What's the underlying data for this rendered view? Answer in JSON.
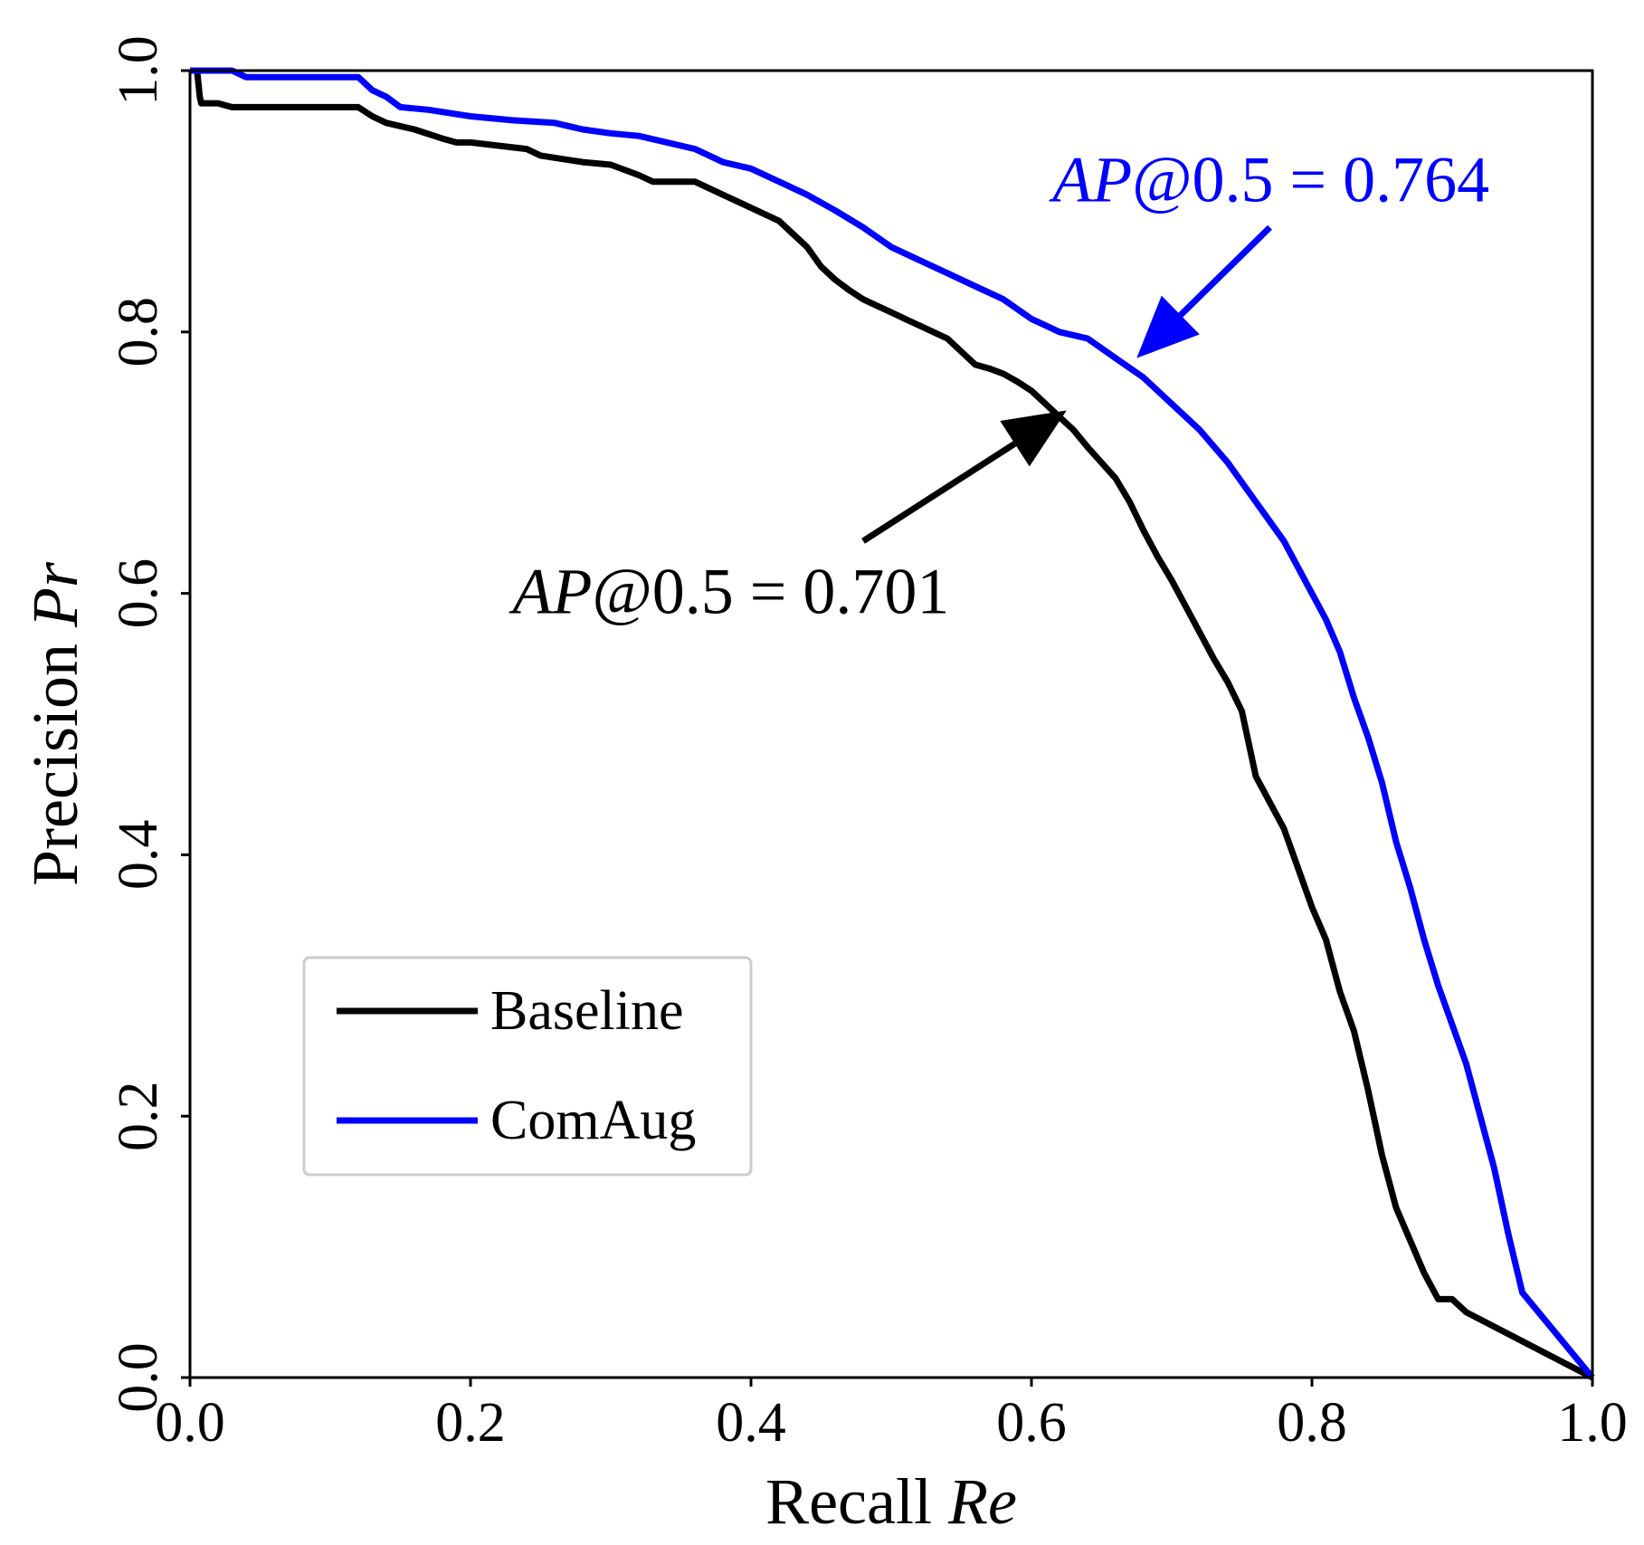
{
  "chart_data": {
    "type": "line",
    "title": "",
    "xlabel": {
      "text": "Recall ",
      "var": "Re"
    },
    "ylabel": {
      "text": "Precision ",
      "var": "Pr"
    },
    "xlim": [
      0.0,
      1.0
    ],
    "ylim": [
      0.0,
      1.0
    ],
    "xticks": [
      "0.0",
      "0.2",
      "0.4",
      "0.6",
      "0.8",
      "1.0"
    ],
    "yticks": [
      "0.0",
      "0.2",
      "0.4",
      "0.6",
      "0.8",
      "1.0"
    ],
    "grid": false,
    "legend": {
      "placement": "lower-left"
    },
    "series": [
      {
        "name": "Baseline",
        "color": "#000000",
        "x": [
          0.005,
          0.006,
          0.007,
          0.008,
          0.02,
          0.03,
          0.06,
          0.12,
          0.13,
          0.14,
          0.16,
          0.18,
          0.19,
          0.2,
          0.24,
          0.25,
          0.28,
          0.3,
          0.32,
          0.33,
          0.36,
          0.38,
          0.4,
          0.42,
          0.43,
          0.44,
          0.45,
          0.46,
          0.47,
          0.48,
          0.49,
          0.5,
          0.51,
          0.52,
          0.53,
          0.54,
          0.55,
          0.56,
          0.57,
          0.58,
          0.59,
          0.6,
          0.61,
          0.62,
          0.63,
          0.64,
          0.65,
          0.66,
          0.67,
          0.68,
          0.69,
          0.7,
          0.71,
          0.72,
          0.73,
          0.74,
          0.75,
          0.76,
          0.77,
          0.78,
          0.79,
          0.8,
          0.81,
          0.82,
          0.83,
          0.84,
          0.85,
          0.86,
          0.87,
          0.88,
          0.89,
          0.9,
          0.91,
          1.0
        ],
        "y": [
          1.0,
          0.99,
          0.98,
          0.975,
          0.975,
          0.972,
          0.972,
          0.972,
          0.965,
          0.96,
          0.955,
          0.948,
          0.945,
          0.945,
          0.94,
          0.935,
          0.93,
          0.928,
          0.92,
          0.915,
          0.915,
          0.905,
          0.895,
          0.885,
          0.875,
          0.865,
          0.85,
          0.84,
          0.832,
          0.825,
          0.82,
          0.815,
          0.81,
          0.805,
          0.8,
          0.795,
          0.785,
          0.775,
          0.772,
          0.768,
          0.762,
          0.755,
          0.745,
          0.735,
          0.725,
          0.712,
          0.7,
          0.688,
          0.67,
          0.648,
          0.628,
          0.61,
          0.59,
          0.57,
          0.55,
          0.532,
          0.51,
          0.46,
          0.44,
          0.42,
          0.39,
          0.36,
          0.335,
          0.295,
          0.265,
          0.22,
          0.17,
          0.13,
          0.105,
          0.08,
          0.06,
          0.06,
          0.05,
          0.0
        ]
      },
      {
        "name": "ComAug",
        "color": "#0000ff",
        "x": [
          0.0,
          0.03,
          0.04,
          0.12,
          0.13,
          0.14,
          0.15,
          0.17,
          0.2,
          0.23,
          0.26,
          0.28,
          0.3,
          0.32,
          0.34,
          0.36,
          0.38,
          0.4,
          0.42,
          0.44,
          0.46,
          0.48,
          0.5,
          0.52,
          0.54,
          0.56,
          0.58,
          0.6,
          0.62,
          0.64,
          0.66,
          0.68,
          0.7,
          0.72,
          0.74,
          0.76,
          0.78,
          0.8,
          0.81,
          0.82,
          0.83,
          0.84,
          0.85,
          0.86,
          0.87,
          0.88,
          0.89,
          0.9,
          0.91,
          0.92,
          0.93,
          0.94,
          0.95,
          1.0
        ],
        "y": [
          1.0,
          1.0,
          0.995,
          0.995,
          0.985,
          0.98,
          0.972,
          0.97,
          0.965,
          0.962,
          0.96,
          0.955,
          0.952,
          0.95,
          0.945,
          0.94,
          0.93,
          0.925,
          0.915,
          0.905,
          0.893,
          0.88,
          0.865,
          0.855,
          0.845,
          0.835,
          0.825,
          0.81,
          0.8,
          0.795,
          0.78,
          0.765,
          0.745,
          0.725,
          0.7,
          0.67,
          0.64,
          0.6,
          0.58,
          0.555,
          0.52,
          0.49,
          0.455,
          0.41,
          0.375,
          0.335,
          0.3,
          0.27,
          0.24,
          0.2,
          0.16,
          0.11,
          0.065,
          0.0
        ]
      }
    ],
    "annotations": [
      {
        "name": "comaug",
        "var": "AP",
        "text": "@0.5 = 0.764",
        "color": "#0000ff",
        "text_at": [
          0.615,
          0.9
        ],
        "arrow_from": [
          0.77,
          0.88
        ],
        "arrow_to": [
          0.675,
          0.78
        ]
      },
      {
        "name": "baseline",
        "var": "AP",
        "text": "@0.5 = 0.701",
        "color": "#000000",
        "text_at": [
          0.23,
          0.585
        ],
        "arrow_from": [
          0.48,
          0.64
        ],
        "arrow_to": [
          0.625,
          0.74
        ]
      }
    ]
  }
}
